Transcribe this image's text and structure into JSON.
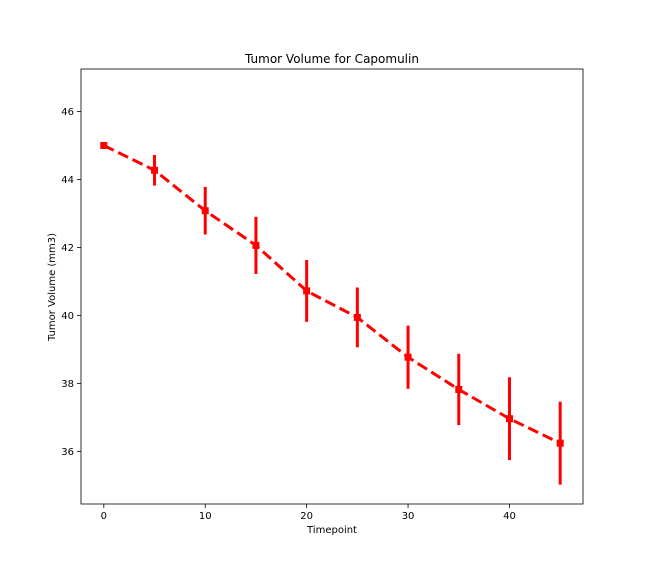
{
  "chart_data": {
    "type": "line",
    "title": "Tumor Volume for Capomulin",
    "xlabel": "Timepoint",
    "ylabel": "Tumor Volume (mm3)",
    "xlim": [
      -2.25,
      47.25
    ],
    "ylim": [
      34.45,
      47.25
    ],
    "xticks": [
      0,
      10,
      20,
      30,
      40
    ],
    "yticks": [
      36,
      38,
      40,
      42,
      44,
      46
    ],
    "grid": false,
    "legend": "none",
    "series": [
      {
        "color": "#ff0000",
        "linestyle": "dashed",
        "marker": "square",
        "x": [
          0,
          5,
          10,
          15,
          20,
          25,
          30,
          35,
          40,
          45
        ],
        "y": [
          45.0,
          44.27,
          43.08,
          42.06,
          40.72,
          39.94,
          38.77,
          37.82,
          36.96,
          36.24
        ],
        "error": [
          0.0,
          0.45,
          0.7,
          0.84,
          0.91,
          0.88,
          0.93,
          1.05,
          1.22,
          1.22
        ]
      }
    ]
  }
}
